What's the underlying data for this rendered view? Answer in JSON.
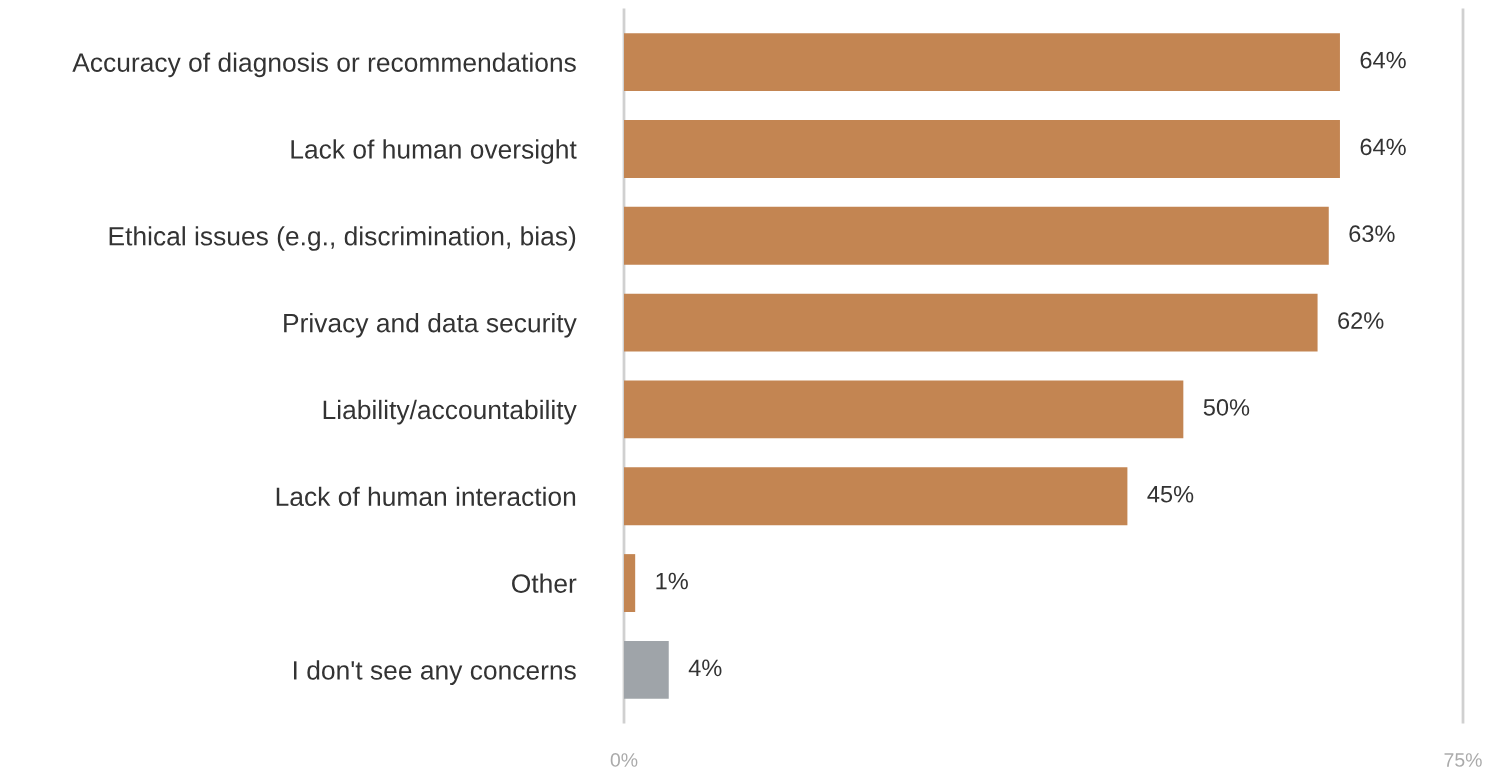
{
  "chart_data": {
    "type": "bar",
    "orientation": "horizontal",
    "categories": [
      "Accuracy of diagnosis or recommendations",
      "Lack of human oversight",
      "Ethical issues (e.g., discrimination, bias)",
      "Privacy and data security",
      "Liability/accountability",
      "Lack of human interaction",
      "Other",
      "I don't see any concerns"
    ],
    "values": [
      64,
      64,
      63,
      62,
      50,
      45,
      1,
      4
    ],
    "value_labels": [
      "64%",
      "64%",
      "63%",
      "62%",
      "50%",
      "45%",
      "1%",
      "4%"
    ],
    "colors": [
      "#c38552",
      "#c38552",
      "#c38552",
      "#c38552",
      "#c38552",
      "#c38552",
      "#c38552",
      "#9fa4a9"
    ],
    "xlim": [
      0,
      75
    ],
    "xticks": [
      {
        "value": 0,
        "label": "0%"
      },
      {
        "value": 75,
        "label": "75%"
      }
    ]
  }
}
